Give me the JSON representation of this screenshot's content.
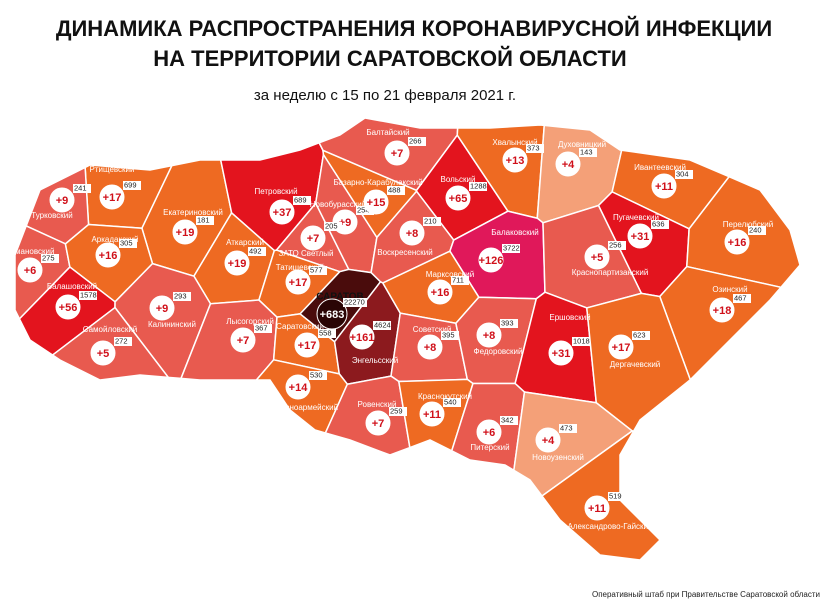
{
  "header": {
    "title_line1": "ДИНАМИКА РАСПРОСТРАНЕНИЯ КОРОНАВИРУСНОЙ ИНФЕКЦИИ",
    "title_line2": "НА ТЕРРИТОРИИ САРАТОВСКОЙ ОБЛАСТИ",
    "subtitle": "за неделю с 15 по 21 февраля 2021 г."
  },
  "regions": [
    {
      "name": "Ртищевский",
      "increase": "+17",
      "total": 699,
      "color": "#ee6a22"
    },
    {
      "name": "Турковский",
      "increase": "+9",
      "total": 241,
      "color": "#e85a4f"
    },
    {
      "name": "Екатериновский",
      "increase": "+19",
      "total": 181,
      "color": "#ee6a22"
    },
    {
      "name": "Петровский",
      "increase": "+37",
      "total": 689,
      "color": "#e3141e"
    },
    {
      "name": "Новобурасский",
      "increase": "+9",
      "total": 254,
      "color": "#e85a4f"
    },
    {
      "name": "Базарно-Карабулакский",
      "increase": "+15",
      "total": 488,
      "color": "#ee6a22"
    },
    {
      "name": "Балтайский",
      "increase": "+7",
      "total": 266,
      "color": "#e85a4f"
    },
    {
      "name": "Вольский",
      "increase": "+65",
      "total": 1288,
      "color": "#e3141e"
    },
    {
      "name": "Хвалынский",
      "increase": "+13",
      "total": 373,
      "color": "#ee6a22"
    },
    {
      "name": "Духовницкий",
      "increase": "+4",
      "total": 143,
      "color": "#f4a078"
    },
    {
      "name": "Ивантеевский",
      "increase": "+11",
      "total": 304,
      "color": "#ee6a22"
    },
    {
      "name": "Пугачевский",
      "increase": "+31",
      "total": 636,
      "color": "#e3141e"
    },
    {
      "name": "Перелюбский",
      "increase": "+16",
      "total": 240,
      "color": "#ee6a22"
    },
    {
      "name": "Романовский",
      "increase": "+6",
      "total": 275,
      "color": "#e85a4f"
    },
    {
      "name": "Аркадакский",
      "increase": "+16",
      "total": 305,
      "color": "#ee6a22"
    },
    {
      "name": "Аткарский",
      "increase": "+19",
      "total": 492,
      "color": "#ee6a22"
    },
    {
      "name": "ЗАТО Светлый",
      "increase": "+7",
      "total": 205,
      "color": "#e85a4f"
    },
    {
      "name": "Татищевский",
      "increase": "+17",
      "total": 577,
      "color": "#ee6a22"
    },
    {
      "name": "Воскресенский",
      "increase": "+8",
      "total": 210,
      "color": "#e85a4f"
    },
    {
      "name": "Балаковский",
      "increase": "+126",
      "total": 3722,
      "color": "#e0185a"
    },
    {
      "name": "Краснопартизанский",
      "increase": "+5",
      "total": 256,
      "color": "#e85a4f"
    },
    {
      "name": "Балашовский",
      "increase": "+56",
      "total": 1578,
      "color": "#e3141e"
    },
    {
      "name": "Калининский",
      "increase": "+9",
      "total": 293,
      "color": "#e85a4f"
    },
    {
      "name": "Лысогорский",
      "increase": "+7",
      "total": 367,
      "color": "#e85a4f"
    },
    {
      "name": "Саратовский",
      "increase": "+17",
      "total": 558,
      "color": "#ee6a22"
    },
    {
      "name": "САРАТОВ",
      "increase": "+683",
      "total": 22270,
      "color": "#4a0c0c"
    },
    {
      "name": "Энгельсский",
      "increase": "+161",
      "total": 4624,
      "color": "#8c1a1e"
    },
    {
      "name": "Марксовский",
      "increase": "+16",
      "total": 711,
      "color": "#ee6a22"
    },
    {
      "name": "Озинский",
      "increase": "+18",
      "total": 467,
      "color": "#ee6a22"
    },
    {
      "name": "Самойловский",
      "increase": "+5",
      "total": 272,
      "color": "#e85a4f"
    },
    {
      "name": "Советский",
      "increase": "+8",
      "total": 395,
      "color": "#e85a4f"
    },
    {
      "name": "Федоровский",
      "increase": "+8",
      "total": 393,
      "color": "#e85a4f"
    },
    {
      "name": "Ершовский",
      "increase": "+31",
      "total": 1018,
      "color": "#e3141e"
    },
    {
      "name": "Дергачевский",
      "increase": "+17",
      "total": 623,
      "color": "#ee6a22"
    },
    {
      "name": "Красноармейский",
      "increase": "+14",
      "total": 530,
      "color": "#ee6a22"
    },
    {
      "name": "Ровенский",
      "increase": "+7",
      "total": 259,
      "color": "#e85a4f"
    },
    {
      "name": "Краснокутский",
      "increase": "+11",
      "total": 540,
      "color": "#ee6a22"
    },
    {
      "name": "Питерский",
      "increase": "+6",
      "total": 342,
      "color": "#e85a4f"
    },
    {
      "name": "Новоузенский",
      "increase": "+4",
      "total": 473,
      "color": "#f4a078"
    },
    {
      "name": "Александрово-Гайский",
      "increase": "+11",
      "total": 519,
      "color": "#ee6a22"
    }
  ],
  "footer": "Оперативный штаб при Правительстве Саратовской области"
}
